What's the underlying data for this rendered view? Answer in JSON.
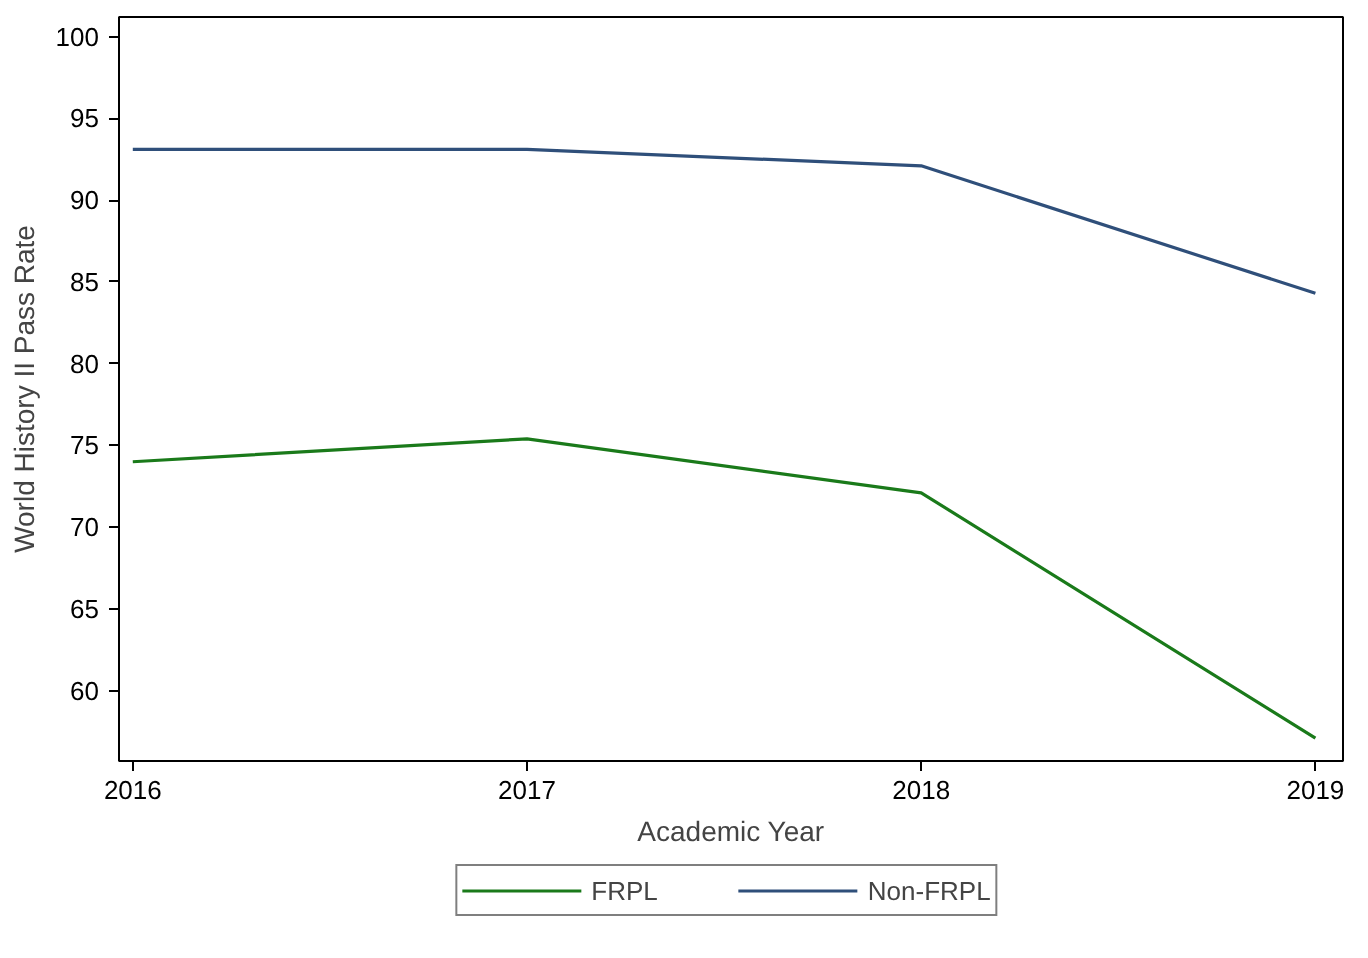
{
  "chart_data": {
    "type": "line",
    "xlabel": "Academic Year",
    "ylabel": "World History II Pass Rate",
    "x": [
      2016,
      2017,
      2018,
      2019
    ],
    "series": [
      {
        "name": "FRPL",
        "color": "#1a7a1a",
        "values": [
          74.0,
          75.4,
          72.1,
          57.1
        ]
      },
      {
        "name": "Non-FRPL",
        "color": "#2f4f7a",
        "values": [
          93.1,
          93.1,
          92.1,
          84.3
        ]
      }
    ],
    "xlim": [
      2015.965,
      2019.07
    ],
    "xticks": [
      2016,
      2017,
      2018,
      2019
    ],
    "ylim": [
      55.7,
      101.2
    ],
    "yticks": [
      60,
      65,
      70,
      75,
      80,
      85,
      90,
      95,
      100
    ],
    "grid": false,
    "legend": "bottom",
    "marker": "none",
    "line_style": "solid"
  }
}
